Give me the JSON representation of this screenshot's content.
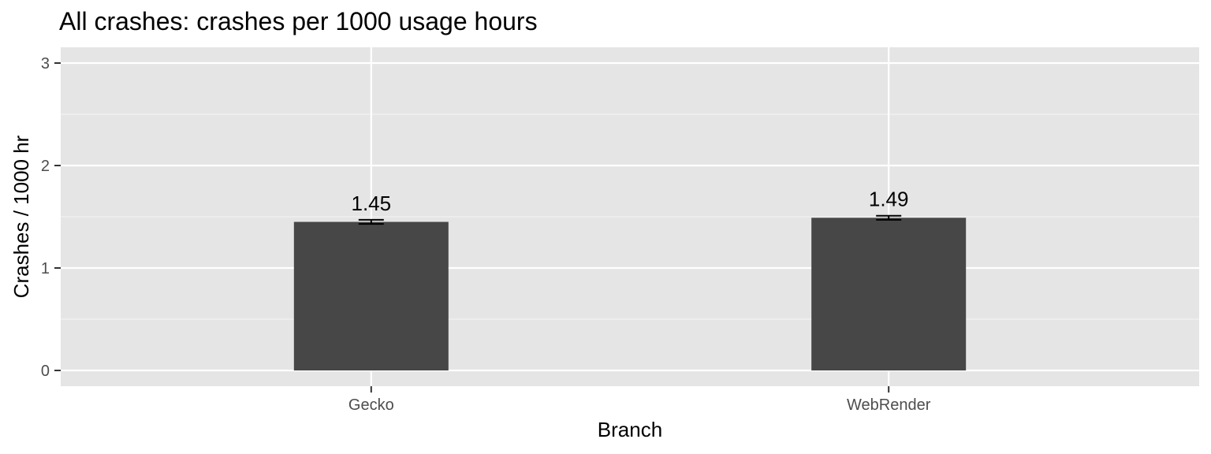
{
  "chart_data": {
    "type": "bar",
    "title": "All crashes: crashes per 1000 usage hours",
    "xlabel": "Branch",
    "ylabel": "Crashes / 1000 hr",
    "categories": [
      "Gecko",
      "WebRender"
    ],
    "values": [
      1.45,
      1.49
    ],
    "data_labels": [
      "1.45",
      "1.49"
    ],
    "error_bars": [
      {
        "lower": 1.43,
        "upper": 1.47
      },
      {
        "lower": 1.47,
        "upper": 1.51
      }
    ],
    "ylim": [
      -0.15,
      3.05
    ],
    "y_ticks": [
      0,
      1,
      2,
      3
    ],
    "y_tick_labels": [
      "0",
      "1",
      "2",
      "3"
    ],
    "grid": true,
    "colors": {
      "panel_background": "#e5e5e5",
      "grid_major": "#ffffff",
      "grid_minor": "#f2f2f2",
      "bar_fill": "#474747",
      "error_bar": "#000000",
      "tick": "#333333"
    }
  }
}
